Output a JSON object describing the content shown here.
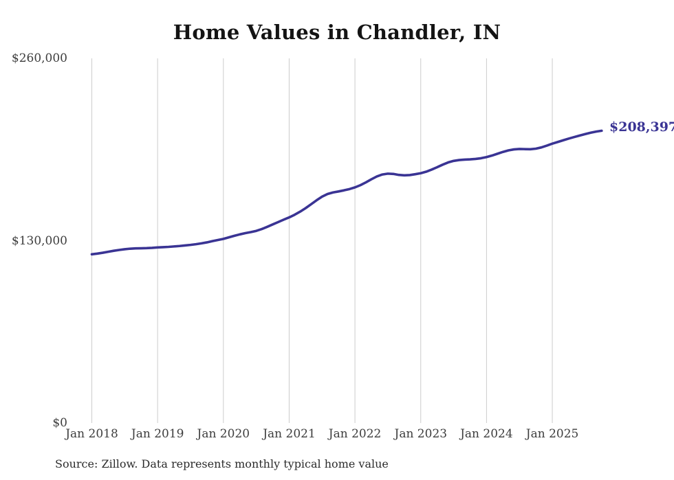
{
  "chart_data": {
    "type": "line",
    "title": "Home Values in Chandler, IN",
    "source_note": "Source: Zillow. Data represents monthly typical home value",
    "end_label": "$208,397",
    "final_value": 208397,
    "frequency": "monthly",
    "x_start": "Jan 2018",
    "x_end": "Oct 2025",
    "x_tick_labels": [
      "Jan 2018",
      "Jan 2019",
      "Jan 2020",
      "Jan 2021",
      "Jan 2022",
      "Jan 2023",
      "Jan 2024",
      "Jan 2025"
    ],
    "y_tick_labels": [
      "$0",
      "$130,000",
      "$260,000"
    ],
    "ylim": [
      0,
      260000
    ],
    "grid": "vertical-only",
    "legend": "none",
    "line_color": "#3a3494",
    "grid_color": "#cccccc",
    "series": [
      {
        "name": "Typical home value",
        "values": [
          120300,
          120800,
          121400,
          122100,
          122800,
          123400,
          123900,
          124300,
          124500,
          124600,
          124700,
          124900,
          125200,
          125400,
          125600,
          125900,
          126200,
          126600,
          127000,
          127500,
          128100,
          128800,
          129700,
          130500,
          131300,
          132400,
          133500,
          134500,
          135400,
          136100,
          137000,
          138300,
          139900,
          141600,
          143300,
          145000,
          146600,
          148500,
          150700,
          153200,
          156000,
          158800,
          161400,
          163300,
          164400,
          165100,
          165900,
          166800,
          168000,
          169600,
          171600,
          173800,
          175800,
          177200,
          177800,
          177600,
          176900,
          176600,
          176800,
          177400,
          178100,
          179200,
          180700,
          182400,
          184200,
          185800,
          186900,
          187500,
          187800,
          188000,
          188300,
          188800,
          189600,
          190700,
          192000,
          193300,
          194400,
          195100,
          195400,
          195300,
          195200,
          195600,
          196500,
          197800,
          199200,
          200400,
          201600,
          202800,
          203900,
          205000,
          206000,
          207000,
          207800,
          208397
        ]
      }
    ]
  }
}
